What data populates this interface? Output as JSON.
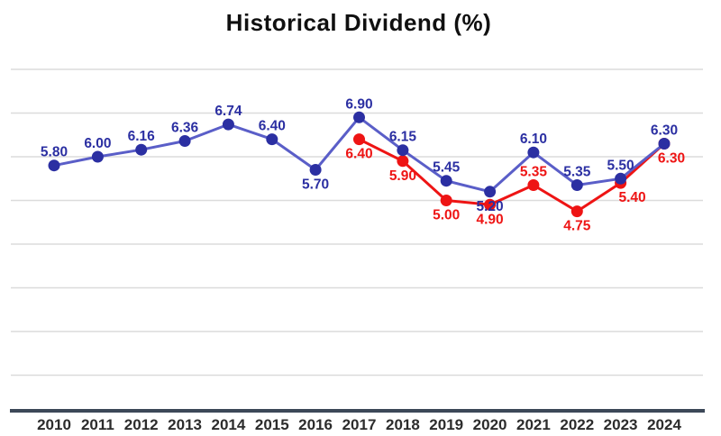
{
  "title": "Historical Dividend (%)",
  "colors": {
    "background": "#ffffff",
    "title": "#101010",
    "grid": "#dbdbdb",
    "axis": "#3c4858",
    "tick_label": "#2c2c2c",
    "series_blue": "#2b2fa2",
    "series_blue_line": "#5a5ec8",
    "series_red": "#ee1414"
  },
  "chart_data": {
    "type": "line",
    "title": "Historical Dividend (%)",
    "xlabel": "",
    "ylabel": "",
    "x": [
      2010,
      2011,
      2012,
      2013,
      2014,
      2015,
      2016,
      2017,
      2018,
      2019,
      2020,
      2021,
      2022,
      2023,
      2024
    ],
    "series": [
      {
        "name": "dividend-red",
        "color": "#ee1414",
        "line_color": "#ee1414",
        "start_year": 2017,
        "values": [
          6.4,
          5.9,
          5.0,
          4.9,
          5.35,
          4.75,
          5.4,
          6.3
        ],
        "label_side": [
          "below",
          "below",
          "below",
          "below",
          "above",
          "below",
          "below",
          "below"
        ],
        "label_dx": [
          0,
          0,
          0,
          0,
          0,
          0,
          13,
          8
        ]
      },
      {
        "name": "dividend-blue",
        "color": "#2b2fa2",
        "line_color": "#5a5ec8",
        "start_year": 2010,
        "values": [
          5.8,
          6.0,
          6.16,
          6.36,
          6.74,
          6.4,
          5.7,
          6.9,
          6.15,
          5.45,
          5.2,
          6.1,
          5.35,
          5.5,
          6.3
        ],
        "label_side": [
          "above",
          "above",
          "above",
          "above",
          "above",
          "above",
          "below",
          "above",
          "above",
          "above",
          "below",
          "above",
          "above",
          "above",
          "above"
        ],
        "label_dx": [
          0,
          0,
          0,
          0,
          0,
          0,
          0,
          0,
          0,
          0,
          0,
          0,
          0,
          0,
          0
        ]
      }
    ],
    "value_format_decimals": 2,
    "gridline_values": [
      1,
      2,
      3,
      4,
      5,
      6,
      7,
      8
    ],
    "grid": "horizontal",
    "legend_position": "none",
    "y_axis_labels_visible": false
  }
}
